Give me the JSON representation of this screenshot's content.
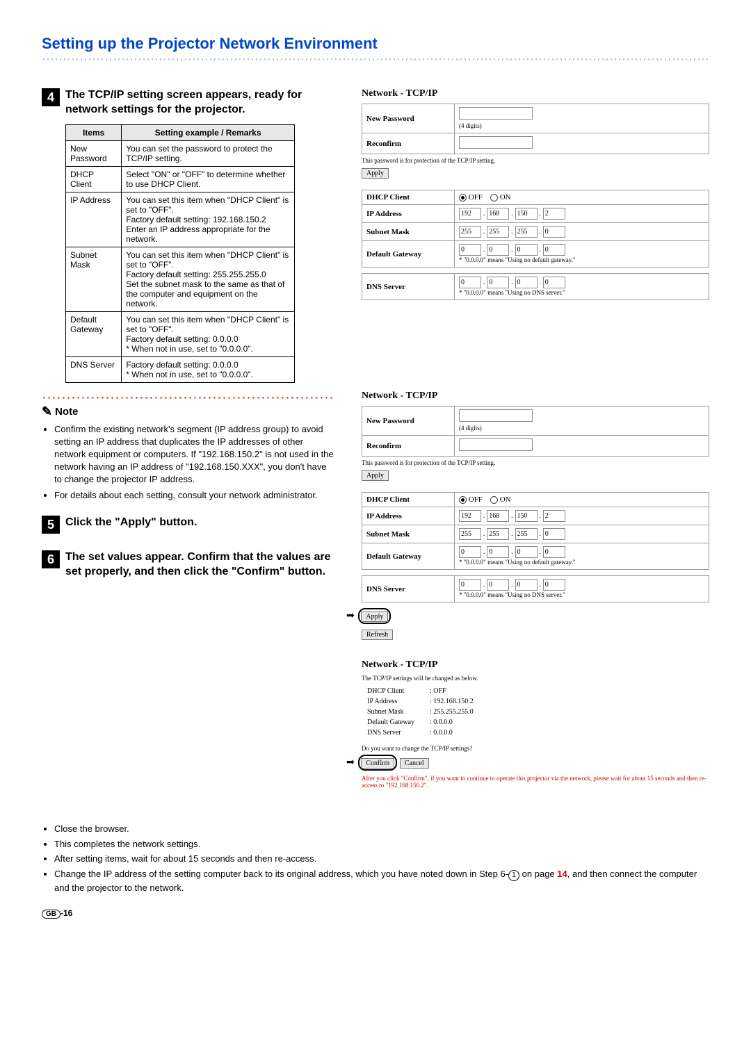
{
  "page": {
    "title": "Setting up the Projector Network Environment",
    "footer_region": "GB",
    "footer_page": "-16"
  },
  "step4": {
    "num": "4",
    "text": "The TCP/IP setting screen appears, ready for network settings for the projector.",
    "table": {
      "headers": [
        "Items",
        "Setting example / Remarks"
      ],
      "rows": [
        [
          "New Password",
          "You can set the password to protect the TCP/IP setting."
        ],
        [
          "DHCP Client",
          "Select \"ON\" or \"OFF\" to determine whether to use DHCP Client."
        ],
        [
          "IP Address",
          "You can set this item when \"DHCP Client\" is set to \"OFF\".\nFactory default setting: 192.168.150.2\nEnter an IP address appropriate for the network."
        ],
        [
          "Subnet Mask",
          "You can set this item when \"DHCP Client\" is set to \"OFF\".\nFactory default setting: 255.255.255.0\nSet the subnet mask to the same as that of the computer and equipment on the network."
        ],
        [
          "Default Gateway",
          "You can set this item when \"DHCP Client\" is set to \"OFF\".\nFactory default setting: 0.0.0.0\n* When not in use, set to \"0.0.0.0\"."
        ],
        [
          "DNS Server",
          "Factory default setting: 0.0.0.0\n* When not in use, set to \"0.0.0.0\"."
        ]
      ]
    }
  },
  "note": {
    "label": "Note",
    "items": [
      "Confirm the existing network's segment (IP address group) to avoid setting an IP address that duplicates the IP addresses of other network equipment or computers. If \"192.168.150.2\" is not used in the network having an IP address of \"192.168.150.XXX\", you don't have to change the projector IP address.",
      "For details about each setting, consult your network administrator."
    ]
  },
  "step5": {
    "num": "5",
    "text": "Click the \"Apply\" button."
  },
  "step6": {
    "num": "6",
    "text": "The set values appear. Confirm that the values are set properly, and then click the \"Confirm\" button."
  },
  "bottom": {
    "items": [
      "Close the browser.",
      "This completes the network settings.",
      "After setting items, wait for about 15 seconds and then re-access."
    ],
    "last_a": "Change the IP address of the setting computer back to its original address, which you have noted down in Step 6-",
    "last_b": " on page ",
    "last_page": "14",
    "last_c": ", and then connect the computer and the projector to the network.",
    "circled": "1"
  },
  "panels": {
    "title": "Network - TCP/IP",
    "new_password": "New Password",
    "four_digits": "(4 digits)",
    "reconfirm": "Reconfirm",
    "pw_note": "This password is for protection of the TCP/IP setting.",
    "apply": "Apply",
    "refresh": "Refresh",
    "dhcp_client": "DHCP Client",
    "off": "OFF",
    "on": "ON",
    "ip_address": "IP Address",
    "subnet_mask": "Subnet Mask",
    "default_gateway": "Default Gateway",
    "dns_server": "DNS Server",
    "gw_note": "* \"0.0.0.0\" means \"Using no default gateway.\"",
    "dns_note": "* \"0.0.0.0\" means \"Using no DNS server.\"",
    "ip_vals": [
      "192",
      "168",
      "150",
      "2"
    ],
    "mask_vals": [
      "255",
      "255",
      "255",
      "0"
    ],
    "zero_vals": [
      "0",
      "0",
      "0",
      "0"
    ]
  },
  "confirm_panel": {
    "intro": "The TCP/IP settings will be changed as below.",
    "rows": [
      [
        "DHCP Client",
        ": OFF"
      ],
      [
        "IP Address",
        ": 192.168.150.2"
      ],
      [
        "Subnet Mask",
        ": 255.255.255.0"
      ],
      [
        "Default Gateway",
        ": 0.0.0.0"
      ],
      [
        "DNS Server",
        ": 0.0.0.0"
      ]
    ],
    "question": "Do you want to change the TCP/IP settings?",
    "confirm": "Confirm",
    "cancel": "Cancel",
    "warn": "After you click \"Confirm\", if you want to continue to operate this projector via the network, please wait for about 15 seconds and then re-access to \"192.168.150.2\"."
  }
}
